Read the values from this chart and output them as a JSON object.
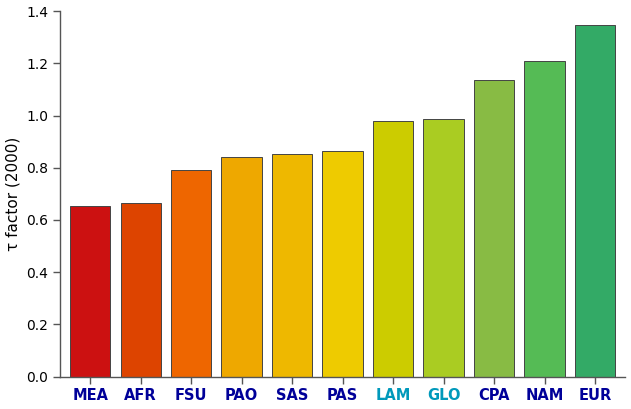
{
  "categories": [
    "MEA",
    "AFR",
    "FSU",
    "PAO",
    "SAS",
    "PAS",
    "LAM",
    "GLO",
    "CPA",
    "NAM",
    "EUR"
  ],
  "values": [
    0.655,
    0.665,
    0.79,
    0.843,
    0.851,
    0.865,
    0.978,
    0.987,
    1.135,
    1.21,
    1.345
  ],
  "bar_colors": [
    "#CC1111",
    "#DD4400",
    "#EE6600",
    "#EEA800",
    "#EEB800",
    "#EECB00",
    "#CCCC00",
    "#AACC22",
    "#88BB44",
    "#55BB55",
    "#33AA66"
  ],
  "ylabel": "τ factor (2000)",
  "ylim": [
    0,
    1.4
  ],
  "yticks": [
    0.0,
    0.2,
    0.4,
    0.6,
    0.8,
    1.0,
    1.2,
    1.4
  ],
  "bar_edge_color": "#444444",
  "bar_linewidth": 0.7,
  "background_color": "#ffffff",
  "tick_label_color_x": [
    "#000099",
    "#000099",
    "#000099",
    "#000099",
    "#000099",
    "#000099",
    "#0099BB",
    "#0099BB",
    "#000099",
    "#000099",
    "#000099"
  ]
}
